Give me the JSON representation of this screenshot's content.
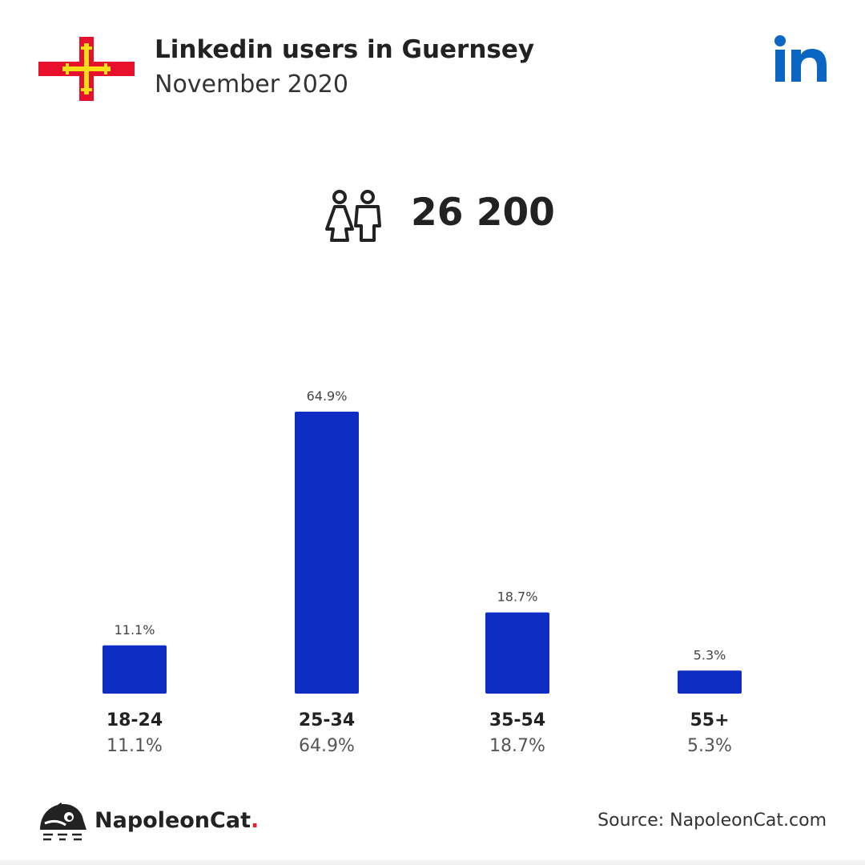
{
  "header": {
    "title": "Linkedin users in Guernsey",
    "subtitle": "November 2020"
  },
  "summary": {
    "total_users": "26 200"
  },
  "chart_data": {
    "type": "bar",
    "title": "",
    "xlabel": "",
    "ylabel": "",
    "categories": [
      "18-24",
      "25-34",
      "35-54",
      "55+"
    ],
    "values": [
      11.1,
      64.9,
      18.7,
      5.3
    ],
    "value_labels": [
      "11.1%",
      "64.9%",
      "18.7%",
      "5.3%"
    ],
    "unit": "%",
    "ylim": [
      0,
      64.9
    ],
    "grid": false,
    "legend": "none"
  },
  "footer": {
    "brand_name": "NapoleonCat",
    "brand_dot": ".",
    "source": "Source: NapoleonCat.com"
  },
  "colors": {
    "bar": "#0f2cc3",
    "flag_red": "#e8112d",
    "flag_yellow": "#f9dd16",
    "linkedin_blue": "#0a66c2",
    "value_label": "#444444",
    "category_pct": "#555555"
  },
  "icons": {
    "flag": "guernsey-flag-icon",
    "logo": "linkedin-logo-icon",
    "users": "users-icon",
    "brand": "napoleoncat-logo-icon"
  }
}
